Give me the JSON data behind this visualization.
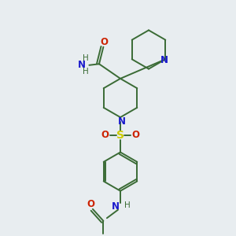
{
  "background_color": "#e8edf0",
  "bond_color": "#3a6b35",
  "N_color": "#1a1acc",
  "O_color": "#cc2200",
  "S_color": "#cccc00",
  "fig_w": 3.0,
  "fig_h": 3.0,
  "dpi": 100,
  "xlim": [
    0,
    10
  ],
  "ylim": [
    0,
    10
  ],
  "bond_lw": 1.4,
  "label_fs": 8.5,
  "label_fs_small": 7.5
}
